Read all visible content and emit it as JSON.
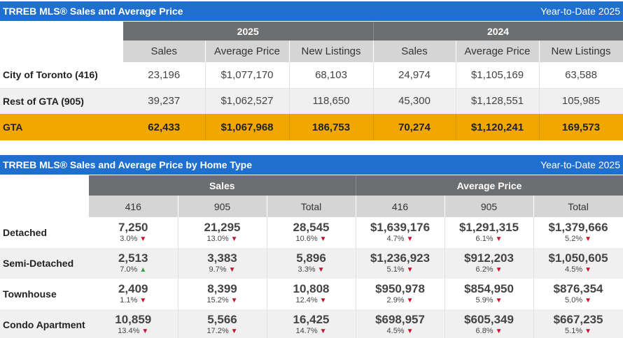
{
  "summary": {
    "title": "TRREB MLS® Sales and Average Price",
    "period": "Year-to-Date 2025",
    "years": [
      "2025",
      "2024"
    ],
    "columns": [
      "Sales",
      "Average Price",
      "New Listings",
      "Sales",
      "Average Price",
      "New Listings"
    ],
    "rows": [
      {
        "label": "City of Toronto (416)",
        "values": [
          "23,196",
          "$1,077,170",
          "68,103",
          "24,974",
          "$1,105,169",
          "63,588"
        ]
      },
      {
        "label": "Rest of GTA (905)",
        "values": [
          "39,237",
          "$1,062,527",
          "118,650",
          "45,300",
          "$1,128,551",
          "105,985"
        ]
      },
      {
        "label": "GTA",
        "values": [
          "62,433",
          "$1,067,968",
          "186,753",
          "70,274",
          "$1,120,241",
          "169,573"
        ]
      }
    ]
  },
  "by_type": {
    "title": "TRREB MLS® Sales and Average Price by Home Type",
    "period": "Year-to-Date 2025",
    "groups": [
      "Sales",
      "Average Price"
    ],
    "columns": [
      "416",
      "905",
      "Total",
      "416",
      "905",
      "Total"
    ],
    "colors": {
      "down": "#c8102e",
      "up": "#2ea043"
    },
    "rows": [
      {
        "label": "Detached",
        "cells": [
          {
            "value": "7,250",
            "change": "3.0%",
            "dir": "down"
          },
          {
            "value": "21,295",
            "change": "13.0%",
            "dir": "down"
          },
          {
            "value": "28,545",
            "change": "10.6%",
            "dir": "down"
          },
          {
            "value": "$1,639,176",
            "change": "4.7%",
            "dir": "down"
          },
          {
            "value": "$1,291,315",
            "change": "6.1%",
            "dir": "down"
          },
          {
            "value": "$1,379,666",
            "change": "5.2%",
            "dir": "down"
          }
        ]
      },
      {
        "label": "Semi-Detached",
        "cells": [
          {
            "value": "2,513",
            "change": "7.0%",
            "dir": "up"
          },
          {
            "value": "3,383",
            "change": "9.7%",
            "dir": "down"
          },
          {
            "value": "5,896",
            "change": "3.3%",
            "dir": "down"
          },
          {
            "value": "$1,236,923",
            "change": "5.1%",
            "dir": "down"
          },
          {
            "value": "$912,203",
            "change": "6.2%",
            "dir": "down"
          },
          {
            "value": "$1,050,605",
            "change": "4.5%",
            "dir": "down"
          }
        ]
      },
      {
        "label": "Townhouse",
        "cells": [
          {
            "value": "2,409",
            "change": "1.1%",
            "dir": "down"
          },
          {
            "value": "8,399",
            "change": "15.2%",
            "dir": "down"
          },
          {
            "value": "10,808",
            "change": "12.4%",
            "dir": "down"
          },
          {
            "value": "$950,978",
            "change": "2.9%",
            "dir": "down"
          },
          {
            "value": "$854,950",
            "change": "5.9%",
            "dir": "down"
          },
          {
            "value": "$876,354",
            "change": "5.0%",
            "dir": "down"
          }
        ]
      },
      {
        "label": "Condo Apartment",
        "cells": [
          {
            "value": "10,859",
            "change": "13.4%",
            "dir": "down"
          },
          {
            "value": "5,566",
            "change": "17.2%",
            "dir": "down"
          },
          {
            "value": "16,425",
            "change": "14.7%",
            "dir": "down"
          },
          {
            "value": "$698,957",
            "change": "4.5%",
            "dir": "down"
          },
          {
            "value": "$605,349",
            "change": "6.8%",
            "dir": "down"
          },
          {
            "value": "$667,235",
            "change": "5.1%",
            "dir": "down"
          }
        ]
      }
    ]
  }
}
